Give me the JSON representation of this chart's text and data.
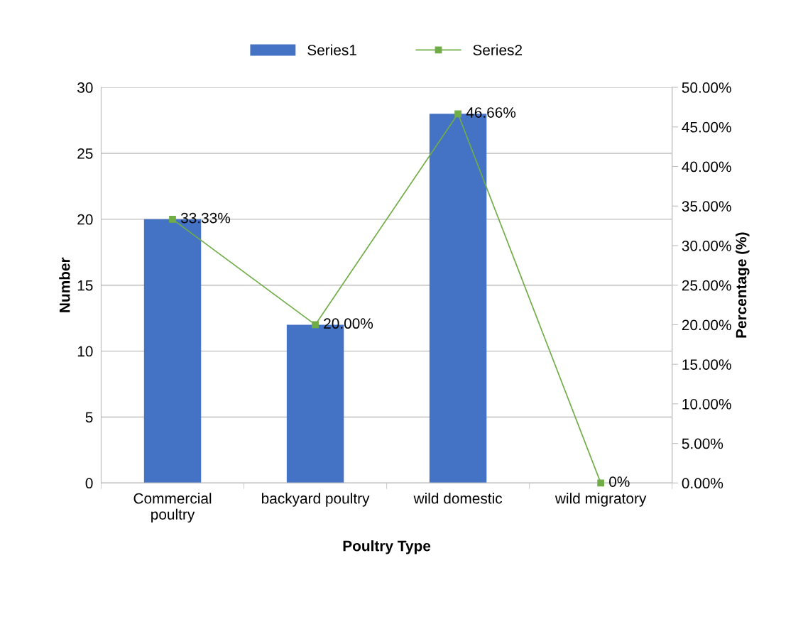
{
  "chart_data": {
    "type": "bar",
    "xlabel": "Poultry Type",
    "ylabel": "Number",
    "y2label": "Percentage (%)",
    "categories": [
      "Commercial\npoultry",
      "backyard poultry",
      "wild domestic",
      "wild migratory"
    ],
    "series": [
      {
        "name": "Series1",
        "color": "#4472c4",
        "values": [
          20,
          12,
          28,
          0
        ]
      },
      {
        "name": "Series2",
        "type": "line",
        "axis": "y2",
        "color": "#70ad47",
        "marker": "square",
        "values": [
          33.33,
          20.0,
          46.66,
          0
        ],
        "value_labels": [
          "33.33%",
          "20.00%",
          "46.66%",
          "0%"
        ]
      }
    ],
    "ylim": [
      0,
      30
    ],
    "yticks": [
      0,
      5,
      10,
      15,
      20,
      25,
      30
    ],
    "y2lim": [
      0,
      50
    ],
    "y2ticks": [
      {
        "value": 0,
        "label": "0.00%"
      },
      {
        "value": 5,
        "label": "5.00%"
      },
      {
        "value": 10,
        "label": "10.00%"
      },
      {
        "value": 15,
        "label": "15.00%"
      },
      {
        "value": 20,
        "label": "20.00%"
      },
      {
        "value": 25,
        "label": "25.00%"
      },
      {
        "value": 30,
        "label": "30.00%"
      },
      {
        "value": 35,
        "label": "35.00%"
      },
      {
        "value": 40,
        "label": "40.00%"
      },
      {
        "value": 45,
        "label": "45.00%"
      },
      {
        "value": 50,
        "label": "50.00%"
      }
    ],
    "grid": "y",
    "legend": "top"
  }
}
